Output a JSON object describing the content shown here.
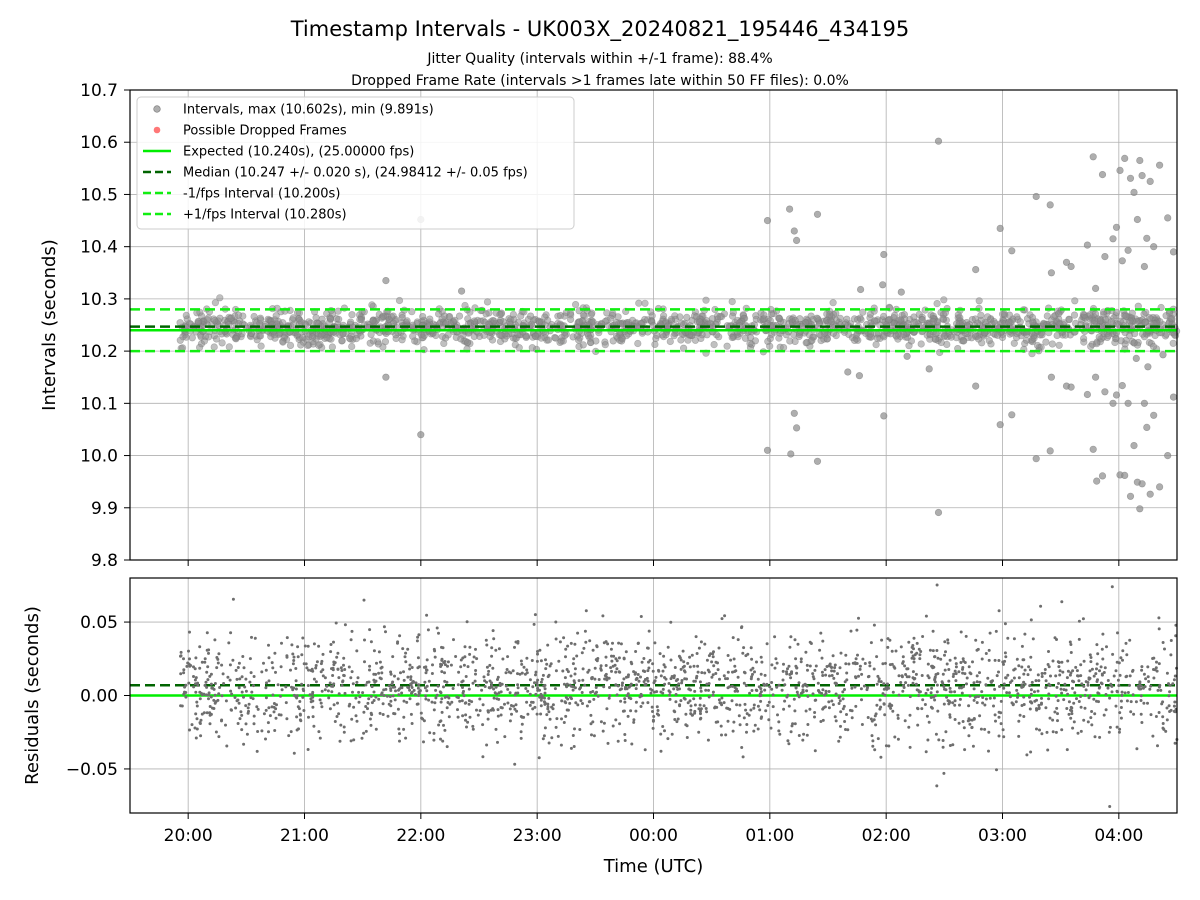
{
  "figure": {
    "title": "Timestamp Intervals - UK003X_20240821_195446_434195",
    "subtitle_line1": "Jitter Quality (intervals within +/-1 frame): 88.4%",
    "subtitle_line2": "Dropped Frame Rate (intervals >1 frames late within 50 FF files): 0.0%"
  },
  "colors": {
    "points_top": "#8c8c8c",
    "points_bottom": "#6e6e6e",
    "dropped": "#ff5555",
    "expected": "#00ee00",
    "median": "#006400",
    "fps_band": "#11ee11",
    "grid": "#b0b0b0"
  },
  "chart_data": [
    {
      "type": "scatter",
      "ylabel": "Intervals (seconds)",
      "ylim": [
        9.8,
        10.7
      ],
      "yticks": [
        "9.8",
        "9.9",
        "10.0",
        "10.1",
        "10.2",
        "10.3",
        "10.4",
        "10.5",
        "10.6",
        "10.7"
      ],
      "xlim_hours": [
        19.5,
        28.5
      ],
      "grid": true,
      "legend_position": "top-left",
      "legend": [
        "Intervals, max (10.602s), min (9.891s)",
        "Possible Dropped Frames",
        "Expected (10.240s), (25.00000 fps)",
        "Median (10.247 +/- 0.020 s), (24.98412 +/- 0.05 fps)",
        "-1/fps Interval (10.200s)",
        "+1/fps Interval (10.280s)"
      ],
      "reference_lines": {
        "expected": 10.24,
        "median": 10.247,
        "minus_one_fps": 10.2,
        "plus_one_fps": 10.28
      },
      "series": [
        {
          "name": "Intervals, max (10.602s), min (9.891s)",
          "bulk": {
            "x_start_hour": 19.93,
            "x_end_hour": 28.5,
            "count": 1700,
            "center": 10.245,
            "spread": 0.028
          },
          "outliers": [
            [
              21.7,
              10.335
            ],
            [
              21.7,
              10.15
            ],
            [
              22.0,
              10.452
            ],
            [
              22.0,
              10.04
            ],
            [
              22.35,
              10.315
            ],
            [
              24.98,
              10.45
            ],
            [
              24.98,
              10.01
            ],
            [
              25.17,
              10.472
            ],
            [
              25.21,
              10.43
            ],
            [
              25.23,
              10.412
            ],
            [
              25.21,
              10.081
            ],
            [
              25.23,
              10.053
            ],
            [
              25.18,
              10.003
            ],
            [
              25.41,
              10.462
            ],
            [
              25.41,
              9.989
            ],
            [
              25.67,
              10.16
            ],
            [
              25.78,
              10.318
            ],
            [
              25.77,
              10.153
            ],
            [
              25.97,
              10.327
            ],
            [
              25.98,
              10.385
            ],
            [
              25.98,
              10.076
            ],
            [
              26.13,
              10.313
            ],
            [
              26.18,
              10.19
            ],
            [
              26.37,
              10.166
            ],
            [
              26.45,
              10.602
            ],
            [
              26.45,
              9.891
            ],
            [
              26.77,
              10.356
            ],
            [
              26.77,
              10.133
            ],
            [
              26.98,
              10.435
            ],
            [
              26.98,
              10.059
            ],
            [
              27.08,
              10.392
            ],
            [
              27.08,
              10.078
            ],
            [
              27.29,
              10.496
            ],
            [
              27.29,
              9.994
            ],
            [
              27.41,
              10.48
            ],
            [
              27.41,
              10.009
            ],
            [
              27.42,
              10.35
            ],
            [
              27.42,
              10.15
            ],
            [
              27.55,
              10.37
            ],
            [
              27.55,
              10.133
            ],
            [
              27.59,
              10.362
            ],
            [
              27.59,
              10.131
            ],
            [
              27.73,
              10.403
            ],
            [
              27.73,
              10.117
            ],
            [
              27.78,
              10.572
            ],
            [
              27.78,
              10.012
            ],
            [
              27.8,
              10.32
            ],
            [
              27.8,
              10.15
            ],
            [
              27.81,
              9.951
            ],
            [
              27.86,
              10.538
            ],
            [
              27.86,
              9.961
            ],
            [
              27.88,
              10.381
            ],
            [
              27.88,
              10.122
            ],
            [
              27.95,
              10.415
            ],
            [
              27.95,
              10.1
            ],
            [
              27.98,
              10.437
            ],
            [
              27.98,
              10.116
            ],
            [
              28.01,
              10.546
            ],
            [
              28.01,
              9.963
            ],
            [
              28.03,
              10.373
            ],
            [
              28.03,
              10.134
            ],
            [
              28.05,
              10.569
            ],
            [
              28.05,
              9.962
            ],
            [
              28.08,
              10.393
            ],
            [
              28.08,
              10.1
            ],
            [
              28.1,
              10.531
            ],
            [
              28.1,
              9.922
            ],
            [
              28.13,
              10.504
            ],
            [
              28.13,
              10.019
            ],
            [
              28.16,
              10.452
            ],
            [
              28.16,
              9.949
            ],
            [
              28.18,
              10.565
            ],
            [
              28.18,
              9.898
            ],
            [
              28.2,
              10.536
            ],
            [
              28.2,
              9.946
            ],
            [
              28.22,
              10.362
            ],
            [
              28.22,
              10.1
            ],
            [
              28.24,
              10.416
            ],
            [
              28.24,
              10.054
            ],
            [
              28.27,
              10.525
            ],
            [
              28.27,
              9.926
            ],
            [
              28.3,
              10.4
            ],
            [
              28.3,
              10.077
            ],
            [
              28.35,
              10.556
            ],
            [
              28.35,
              9.94
            ],
            [
              28.42,
              10.455
            ],
            [
              28.42,
              10.0
            ],
            [
              28.47,
              10.39
            ],
            [
              28.47,
              10.112
            ],
            [
              28.15,
              10.186
            ],
            [
              28.25,
              10.17
            ],
            [
              28.38,
              10.193
            ]
          ]
        }
      ]
    },
    {
      "type": "scatter",
      "ylabel": "Residuals (seconds)",
      "xlabel": "Time (UTC)",
      "ylim": [
        -0.08,
        0.08
      ],
      "yticks": [
        "−0.05",
        "0.00",
        "0.05"
      ],
      "ytick_values": [
        -0.05,
        0.0,
        0.05
      ],
      "xlim_hours": [
        19.5,
        28.5
      ],
      "xticks": [
        "20:00",
        "21:00",
        "22:00",
        "23:00",
        "00:00",
        "01:00",
        "02:00",
        "03:00",
        "04:00"
      ],
      "xtick_hours": [
        20,
        21,
        22,
        23,
        24,
        25,
        26,
        27,
        28
      ],
      "grid": true,
      "reference_lines": {
        "zero": 0.0,
        "median_offset": 0.007
      },
      "series": [
        {
          "name": "",
          "bulk": {
            "x_start_hour": 19.93,
            "x_end_hour": 28.5,
            "count": 2200,
            "center": 0.005,
            "spread": 0.02
          }
        }
      ]
    }
  ]
}
